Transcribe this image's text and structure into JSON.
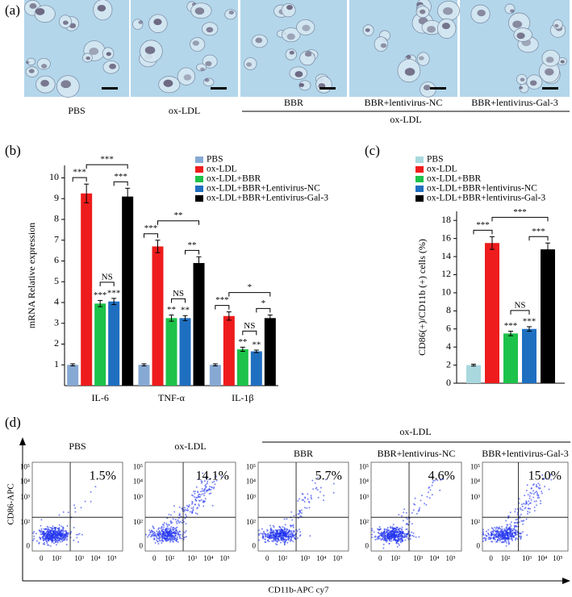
{
  "panel_a": {
    "label": "(a)",
    "captions": [
      "PBS",
      "ox-LDL",
      "BBR",
      "BBR+lentivirus-NC",
      "BBR+lentivirus-Gal-3"
    ],
    "group_label": "ox-LDL"
  },
  "chart_data": [
    {
      "type": "bar",
      "label": "(b)",
      "y_label": "mRNA Relative expression",
      "categories": [
        "IL-6",
        "TNF-α",
        "IL-1β"
      ],
      "ylim": [
        0,
        10.6
      ],
      "yticks": [
        1,
        2,
        3,
        4,
        5,
        6,
        7,
        8,
        9,
        10
      ],
      "series": [
        {
          "name": "PBS",
          "color": "#86a9d4",
          "values": [
            1,
            1,
            1
          ],
          "errors": [
            0.05,
            0.05,
            0.05
          ]
        },
        {
          "name": "ox-LDL",
          "color": "#ee1c1c",
          "values": [
            9.25,
            6.7,
            3.35
          ],
          "errors": [
            0.45,
            0.3,
            0.2
          ]
        },
        {
          "name": "ox-LDL+BBR",
          "color": "#1dc24a",
          "values": [
            3.95,
            3.25,
            1.75
          ],
          "errors": [
            0.15,
            0.15,
            0.1
          ],
          "significance": [
            "***",
            "**",
            "**"
          ]
        },
        {
          "name": "ox-LDL+BBR+Lentivirus-NC",
          "color": "#1f6fc0",
          "values": [
            4.05,
            3.25,
            1.65
          ],
          "errors": [
            0.15,
            0.12,
            0.06
          ],
          "significance": [
            "***",
            "**",
            "**"
          ]
        },
        {
          "name": "ox-LDL+BBR+Lentivirus-Gal-3",
          "color": "#000000",
          "values": [
            9.1,
            5.9,
            3.25
          ],
          "errors": [
            0.4,
            0.3,
            0.15
          ]
        }
      ],
      "brackets": [
        {
          "category": "IL-6",
          "between": [
            "PBS",
            "ox-LDL"
          ],
          "label": "***"
        },
        {
          "category": "IL-6",
          "between": [
            "ox-LDL+BBR",
            "ox-LDL+BBR+Lentivirus-NC"
          ],
          "label": "NS"
        },
        {
          "category": "IL-6",
          "between": [
            "ox-LDL+BBR+Lentivirus-NC",
            "ox-LDL+BBR+Lentivirus-Gal-3"
          ],
          "label": "***"
        },
        {
          "category": "IL-6",
          "between": [
            "ox-LDL",
            "ox-LDL+BBR+Lentivirus-Gal-3"
          ],
          "label": "***"
        },
        {
          "category": "TNF-α",
          "between": [
            "PBS",
            "ox-LDL"
          ],
          "label": "***"
        },
        {
          "category": "TNF-α",
          "between": [
            "ox-LDL+BBR",
            "ox-LDL+BBR+Lentivirus-NC"
          ],
          "label": "NS"
        },
        {
          "category": "TNF-α",
          "between": [
            "ox-LDL+BBR+Lentivirus-NC",
            "ox-LDL+BBR+Lentivirus-Gal-3"
          ],
          "label": "**"
        },
        {
          "category": "TNF-α",
          "between": [
            "ox-LDL",
            "ox-LDL+BBR+Lentivirus-Gal-3"
          ],
          "label": "**"
        },
        {
          "category": "IL-1β",
          "between": [
            "PBS",
            "ox-LDL"
          ],
          "label": "***"
        },
        {
          "category": "IL-1β",
          "between": [
            "ox-LDL+BBR",
            "ox-LDL+BBR+Lentivirus-NC"
          ],
          "label": "NS"
        },
        {
          "category": "IL-1β",
          "between": [
            "ox-LDL+BBR+Lentivirus-NC",
            "ox-LDL+BBR+Lentivirus-Gal-3"
          ],
          "label": "*"
        },
        {
          "category": "IL-1β",
          "between": [
            "ox-LDL",
            "ox-LDL+BBR+Lentivirus-Gal-3"
          ],
          "label": "*"
        }
      ]
    },
    {
      "type": "bar",
      "label": "(c)",
      "y_label": "CD86(+)/CD11b (+) cells (%)",
      "categories": [
        null
      ],
      "ylim": [
        0,
        19
      ],
      "yticks": [
        0,
        2,
        4,
        6,
        8,
        10,
        12,
        14,
        16,
        18
      ],
      "series": [
        {
          "name": "PBS",
          "color": "#a9d8de",
          "values": [
            2.0
          ],
          "errors": [
            0.1
          ]
        },
        {
          "name": "ox-LDL",
          "color": "#ee1c1c",
          "values": [
            15.5
          ],
          "errors": [
            0.7
          ]
        },
        {
          "name": "ox-LDL+BBR",
          "color": "#1dc24a",
          "values": [
            5.5
          ],
          "errors": [
            0.25
          ],
          "significance": [
            "***"
          ]
        },
        {
          "name": "ox-LDL+BBR+lentivirus-NC",
          "color": "#1f6fc0",
          "values": [
            6.0
          ],
          "errors": [
            0.25
          ],
          "significance": [
            "***"
          ]
        },
        {
          "name": "ox-LDL+BBR+lentivirus-Gal-3",
          "color": "#000000",
          "values": [
            14.8
          ],
          "errors": [
            0.7
          ]
        }
      ],
      "brackets": [
        {
          "between": [
            "PBS",
            "ox-LDL"
          ],
          "label": "***"
        },
        {
          "between": [
            "ox-LDL+BBR",
            "ox-LDL+BBR+lentivirus-NC"
          ],
          "label": "NS"
        },
        {
          "between": [
            "ox-LDL+BBR+lentivirus-NC",
            "ox-LDL+BBR+lentivirus-Gal-3"
          ],
          "label": "***"
        },
        {
          "between": [
            "ox-LDL",
            "ox-LDL+BBR+lentivirus-Gal-3"
          ],
          "label": "***"
        }
      ]
    }
  ],
  "panel_d": {
    "label": "(d)",
    "group_label": "ox-LDL",
    "y_label": "CD86-APC",
    "x_label": "CD11b-APC cy7",
    "axis_ticks": [
      "0",
      "10²",
      "10³",
      "10⁴",
      "10⁵"
    ],
    "plots": [
      {
        "title": "PBS",
        "percent": "1.5%"
      },
      {
        "title": "ox-LDL",
        "percent": "14.1%"
      },
      {
        "title": "BBR",
        "percent": "5.7%"
      },
      {
        "title": "BBR+lentivirus-NC",
        "percent": "4.6%"
      },
      {
        "title": "BBR+lentivirus-Gal-3",
        "percent": "15.0%"
      }
    ]
  }
}
